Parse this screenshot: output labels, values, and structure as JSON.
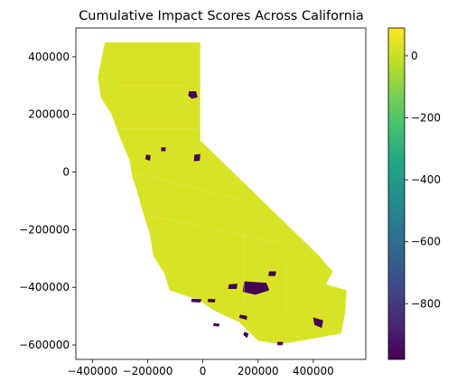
{
  "chart_data": {
    "type": "choropleth-map",
    "title": "Cumulative Impact Scores Across California",
    "xlabel": "",
    "ylabel": "",
    "xlim": [
      -460000,
      590000
    ],
    "ylim": [
      -650000,
      500000
    ],
    "x_ticks": [
      -400000,
      -200000,
      0,
      200000,
      400000
    ],
    "x_tick_labels": [
      "−400000",
      "−200000",
      "0",
      "200000",
      "400000"
    ],
    "y_ticks": [
      400000,
      200000,
      0,
      -200000,
      -400000,
      -600000
    ],
    "y_tick_labels": [
      "400000",
      "200000",
      "0",
      "−200000",
      "−400000",
      "−600000"
    ],
    "colorbar": {
      "colormap": "viridis",
      "vmin": -980,
      "vmax": 90,
      "ticks": [
        0,
        -200,
        -400,
        -600,
        -800
      ],
      "tick_labels": [
        "0",
        "−200",
        "−400",
        "−600",
        "−800"
      ]
    },
    "dominant_value": 30,
    "regions": [
      {
        "name": "state-outline",
        "value": 30,
        "polygon": [
          [
            -355000,
            450000
          ],
          [
            -10000,
            450000
          ],
          [
            -10000,
            110000
          ],
          [
            420000,
            -290000
          ],
          [
            470000,
            -345000
          ],
          [
            445000,
            -390000
          ],
          [
            520000,
            -410000
          ],
          [
            515000,
            -490000
          ],
          [
            500000,
            -560000
          ],
          [
            325000,
            -590000
          ],
          [
            270000,
            -595000
          ],
          [
            200000,
            -585000
          ],
          [
            130000,
            -520000
          ],
          [
            40000,
            -480000
          ],
          [
            -20000,
            -440000
          ],
          [
            -60000,
            -430000
          ],
          [
            -120000,
            -410000
          ],
          [
            -140000,
            -350000
          ],
          [
            -180000,
            -290000
          ],
          [
            -190000,
            -220000
          ],
          [
            -220000,
            -130000
          ],
          [
            -240000,
            -60000
          ],
          [
            -255000,
            -20000
          ],
          [
            -265000,
            40000
          ],
          [
            -300000,
            120000
          ],
          [
            -330000,
            200000
          ],
          [
            -370000,
            260000
          ],
          [
            -380000,
            330000
          ],
          [
            -355000,
            450000
          ]
        ]
      },
      {
        "name": "shasta-cluster",
        "value": -980,
        "polygon": [
          [
            -50000,
            280000
          ],
          [
            -25000,
            280000
          ],
          [
            -20000,
            260000
          ],
          [
            -40000,
            255000
          ],
          [
            -52000,
            265000
          ]
        ]
      },
      {
        "name": "sacramento-valley-cluster",
        "value": -980,
        "polygon": [
          [
            -205000,
            60000
          ],
          [
            -190000,
            58000
          ],
          [
            -192000,
            40000
          ],
          [
            -208000,
            45000
          ]
        ]
      },
      {
        "name": "plumas-cluster",
        "value": -980,
        "polygon": [
          [
            -30000,
            60000
          ],
          [
            -10000,
            62000
          ],
          [
            -12000,
            40000
          ],
          [
            -32000,
            38000
          ]
        ]
      },
      {
        "name": "yuba-cluster",
        "value": -980,
        "polygon": [
          [
            -150000,
            85000
          ],
          [
            -135000,
            85000
          ],
          [
            -136000,
            73000
          ],
          [
            -151000,
            73000
          ]
        ]
      },
      {
        "name": "los-angeles-cluster",
        "value": -980,
        "polygon": [
          [
            150000,
            -380000
          ],
          [
            230000,
            -385000
          ],
          [
            240000,
            -410000
          ],
          [
            190000,
            -425000
          ],
          [
            145000,
            -415000
          ]
        ]
      },
      {
        "name": "ventura-cluster",
        "value": -980,
        "polygon": [
          [
            95000,
            -390000
          ],
          [
            125000,
            -388000
          ],
          [
            122000,
            -405000
          ],
          [
            92000,
            -405000
          ]
        ]
      },
      {
        "name": "san-bernardino-cluster",
        "value": -980,
        "polygon": [
          [
            240000,
            -345000
          ],
          [
            265000,
            -345000
          ],
          [
            262000,
            -360000
          ],
          [
            238000,
            -360000
          ]
        ]
      },
      {
        "name": "channel-islands-west",
        "value": -980,
        "polygon": [
          [
            -40000,
            -440000
          ],
          [
            -5000,
            -442000
          ],
          [
            -10000,
            -452000
          ],
          [
            -42000,
            -450000
          ]
        ]
      },
      {
        "name": "channel-islands-east",
        "value": -980,
        "polygon": [
          [
            20000,
            -440000
          ],
          [
            45000,
            -442000
          ],
          [
            42000,
            -452000
          ],
          [
            18000,
            -450000
          ]
        ]
      },
      {
        "name": "catalina-island",
        "value": -980,
        "polygon": [
          [
            135000,
            -495000
          ],
          [
            160000,
            -500000
          ],
          [
            158000,
            -512000
          ],
          [
            132000,
            -505000
          ]
        ]
      },
      {
        "name": "san-clemente-island",
        "value": -980,
        "polygon": [
          [
            150000,
            -555000
          ],
          [
            165000,
            -560000
          ],
          [
            160000,
            -575000
          ],
          [
            147000,
            -565000
          ]
        ]
      },
      {
        "name": "san-nicolas-island",
        "value": -980,
        "polygon": [
          [
            40000,
            -525000
          ],
          [
            60000,
            -527000
          ],
          [
            58000,
            -535000
          ],
          [
            38000,
            -533000
          ]
        ]
      },
      {
        "name": "palm-springs-cluster",
        "value": -980,
        "polygon": [
          [
            400000,
            -505000
          ],
          [
            435000,
            -515000
          ],
          [
            430000,
            -540000
          ],
          [
            405000,
            -530000
          ]
        ]
      },
      {
        "name": "imperial-cluster",
        "value": -980,
        "polygon": [
          [
            270000,
            -590000
          ],
          [
            290000,
            -590000
          ],
          [
            288000,
            -600000
          ],
          [
            270000,
            -600000
          ]
        ]
      }
    ]
  }
}
